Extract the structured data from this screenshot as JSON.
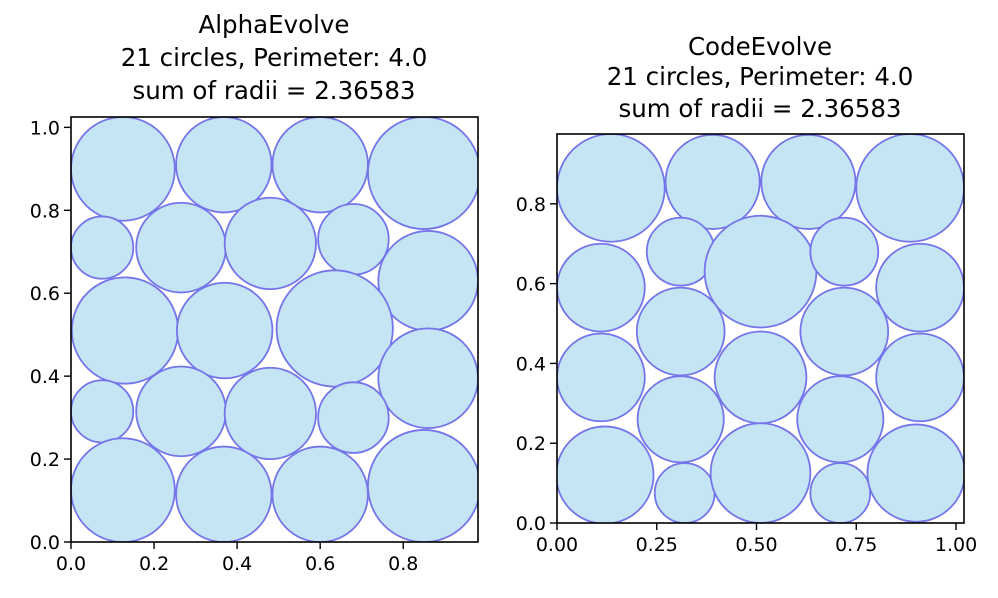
{
  "style": {
    "circle_fill": "#c5e4f4",
    "circle_stroke": "#7575ea",
    "frame_color": "#000000"
  },
  "chart_data": [
    {
      "type": "scatter",
      "title": [
        "AlphaEvolve",
        "21 circles, Perimeter: 4.0",
        "sum of radii = 2.36583"
      ],
      "xlim": [
        0.0,
        0.98
      ],
      "ylim": [
        0.0,
        1.025
      ],
      "xticks": [
        "0.0",
        "0.2",
        "0.4",
        "0.6",
        "0.8"
      ],
      "yticks": [
        "0.0",
        "0.2",
        "0.4",
        "0.6",
        "0.8",
        "1.0"
      ],
      "grid": false,
      "circles": [
        {
          "x": 0.125,
          "y": 0.9,
          "r": 0.125
        },
        {
          "x": 0.368,
          "y": 0.91,
          "r": 0.115
        },
        {
          "x": 0.6,
          "y": 0.91,
          "r": 0.115
        },
        {
          "x": 0.85,
          "y": 0.89,
          "r": 0.135
        },
        {
          "x": 0.075,
          "y": 0.71,
          "r": 0.075
        },
        {
          "x": 0.265,
          "y": 0.71,
          "r": 0.108
        },
        {
          "x": 0.48,
          "y": 0.72,
          "r": 0.11
        },
        {
          "x": 0.68,
          "y": 0.73,
          "r": 0.085
        },
        {
          "x": 0.86,
          "y": 0.63,
          "r": 0.12
        },
        {
          "x": 0.13,
          "y": 0.51,
          "r": 0.128
        },
        {
          "x": 0.37,
          "y": 0.51,
          "r": 0.115
        },
        {
          "x": 0.635,
          "y": 0.515,
          "r": 0.14
        },
        {
          "x": 0.86,
          "y": 0.395,
          "r": 0.12
        },
        {
          "x": 0.075,
          "y": 0.315,
          "r": 0.075
        },
        {
          "x": 0.265,
          "y": 0.315,
          "r": 0.108
        },
        {
          "x": 0.48,
          "y": 0.31,
          "r": 0.11
        },
        {
          "x": 0.68,
          "y": 0.3,
          "r": 0.085
        },
        {
          "x": 0.125,
          "y": 0.125,
          "r": 0.125
        },
        {
          "x": 0.368,
          "y": 0.115,
          "r": 0.115
        },
        {
          "x": 0.6,
          "y": 0.115,
          "r": 0.115
        },
        {
          "x": 0.85,
          "y": 0.135,
          "r": 0.135
        }
      ]
    },
    {
      "type": "scatter",
      "title": [
        "CodeEvolve",
        "21 circles, Perimeter: 4.0",
        "sum of radii = 2.36583"
      ],
      "xlim": [
        0.0,
        1.02
      ],
      "ylim": [
        0.0,
        0.975
      ],
      "xticks": [
        "0.00",
        "0.25",
        "0.50",
        "0.75",
        "1.00"
      ],
      "yticks": [
        "0.0",
        "0.2",
        "0.4",
        "0.6",
        "0.8"
      ],
      "grid": false,
      "circles": [
        {
          "x": 0.135,
          "y": 0.84,
          "r": 0.135
        },
        {
          "x": 0.39,
          "y": 0.855,
          "r": 0.118
        },
        {
          "x": 0.63,
          "y": 0.855,
          "r": 0.118
        },
        {
          "x": 0.885,
          "y": 0.84,
          "r": 0.135
        },
        {
          "x": 0.11,
          "y": 0.59,
          "r": 0.11
        },
        {
          "x": 0.31,
          "y": 0.68,
          "r": 0.085
        },
        {
          "x": 0.51,
          "y": 0.63,
          "r": 0.14
        },
        {
          "x": 0.72,
          "y": 0.68,
          "r": 0.085
        },
        {
          "x": 0.91,
          "y": 0.59,
          "r": 0.11
        },
        {
          "x": 0.31,
          "y": 0.48,
          "r": 0.11
        },
        {
          "x": 0.72,
          "y": 0.48,
          "r": 0.11
        },
        {
          "x": 0.11,
          "y": 0.365,
          "r": 0.11
        },
        {
          "x": 0.51,
          "y": 0.365,
          "r": 0.115
        },
        {
          "x": 0.91,
          "y": 0.365,
          "r": 0.11
        },
        {
          "x": 0.31,
          "y": 0.26,
          "r": 0.108
        },
        {
          "x": 0.71,
          "y": 0.26,
          "r": 0.108
        },
        {
          "x": 0.12,
          "y": 0.12,
          "r": 0.122
        },
        {
          "x": 0.32,
          "y": 0.075,
          "r": 0.075
        },
        {
          "x": 0.51,
          "y": 0.125,
          "r": 0.125
        },
        {
          "x": 0.71,
          "y": 0.075,
          "r": 0.075
        },
        {
          "x": 0.9,
          "y": 0.125,
          "r": 0.122
        }
      ]
    }
  ]
}
